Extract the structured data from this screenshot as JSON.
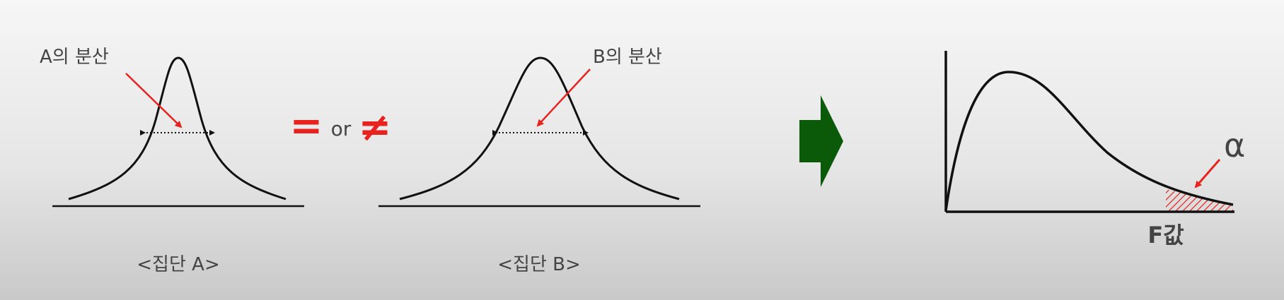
{
  "group_a": {
    "variance_label": "A의 분산",
    "caption": "<집단 A>"
  },
  "comparison": {
    "equal_symbol": "=",
    "or_text": "or",
    "not_equal_symbol": "≠"
  },
  "group_b": {
    "variance_label": "B의 분산",
    "caption": "<집단 B>"
  },
  "f_distribution": {
    "alpha_label": "α",
    "x_label": "F값"
  },
  "colors": {
    "curve": "#111111",
    "annotation_red": "#e8231e",
    "arrow_green": "#0a5a0a",
    "label_gray": "#444444"
  }
}
